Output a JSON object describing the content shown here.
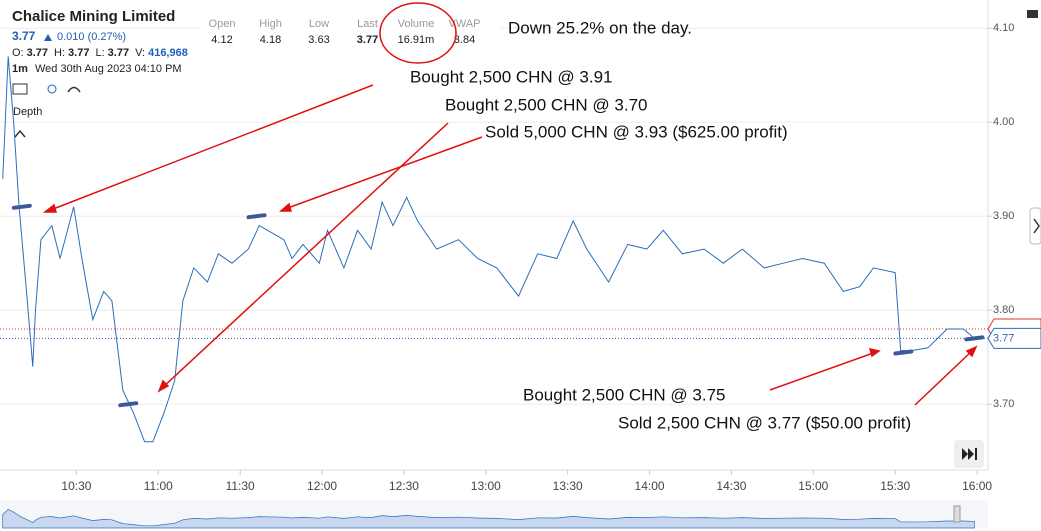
{
  "header": {
    "title": "Chalice Mining Limited",
    "price": "3.77",
    "change": "0.010 (0.27%)",
    "ohlc": [
      {
        "label": "O:",
        "value": "3.77"
      },
      {
        "label": "H:",
        "value": "3.77"
      },
      {
        "label": "L:",
        "value": "3.77"
      },
      {
        "label": "V:",
        "value": "416,968"
      }
    ],
    "interval": "1m",
    "datetime": "Wed 30th Aug 2023 04:10 PM",
    "depth": "Depth"
  },
  "stats": [
    {
      "label": "Open",
      "value": "4.12"
    },
    {
      "label": "High",
      "value": "4.18"
    },
    {
      "label": "Low",
      "value": "3.63"
    },
    {
      "label": "Last",
      "value": "3.77"
    },
    {
      "label": "Volume",
      "value": "16.91m"
    },
    {
      "label": "VWAP",
      "value": "3.84"
    }
  ],
  "chart_data": {
    "type": "line",
    "annotations": [
      "Down 25.2% on the day.",
      "Bought 2,500 CHN @ 3.91",
      "Bought 2,500 CHN @ 3.70",
      "Sold 5,000 CHN @ 3.93 ($625.00 profit)",
      "Bought 2,500 CHN @ 3.75",
      "Sold 2,500 CHN @ 3.77 ($50.00 profit)"
    ],
    "xlim": [
      602,
      964
    ],
    "ylim": [
      3.63,
      4.13
    ],
    "xticks": [
      {
        "value": 630,
        "label": "10:30"
      },
      {
        "value": 660,
        "label": "11:00"
      },
      {
        "value": 690,
        "label": "11:30"
      },
      {
        "value": 720,
        "label": "12:00"
      },
      {
        "value": 750,
        "label": "12:30"
      },
      {
        "value": 780,
        "label": "13:00"
      },
      {
        "value": 810,
        "label": "13:30"
      },
      {
        "value": 840,
        "label": "14:00"
      },
      {
        "value": 870,
        "label": "14:30"
      },
      {
        "value": 900,
        "label": "15:00"
      },
      {
        "value": 930,
        "label": "15:30"
      },
      {
        "value": 960,
        "label": "16:00"
      }
    ],
    "yticks": [
      {
        "value": 3.7,
        "label": "3.70"
      },
      {
        "value": 3.8,
        "label": "3.80"
      },
      {
        "value": 3.9,
        "label": "3.90"
      },
      {
        "value": 4.0,
        "label": "4.00"
      },
      {
        "value": 4.1,
        "label": "4.10"
      }
    ],
    "grid": true,
    "series": [
      {
        "color": "#2a6ebb",
        "x": [
          603,
          605,
          607,
          609,
          612,
          614,
          615,
          617,
          621,
          624,
          629,
          632,
          636,
          640,
          643,
          647,
          651,
          655,
          658,
          662,
          666,
          669,
          673,
          678,
          682,
          687,
          693,
          697,
          700,
          706,
          709,
          713,
          719,
          722,
          728,
          733,
          738,
          742,
          746,
          751,
          755,
          762,
          770,
          777,
          784,
          792,
          799,
          806,
          812,
          817,
          825,
          832,
          839,
          845,
          852,
          860,
          867,
          874,
          882,
          889,
          896,
          904,
          911,
          917,
          922,
          930,
          932,
          936,
          942,
          949,
          955,
          959
        ],
        "values": [
          3.94,
          4.07,
          4.0,
          3.91,
          3.81,
          3.74,
          3.8,
          3.875,
          3.89,
          3.855,
          3.91,
          3.855,
          3.79,
          3.82,
          3.81,
          3.715,
          3.69,
          3.66,
          3.66,
          3.69,
          3.725,
          3.81,
          3.845,
          3.83,
          3.86,
          3.85,
          3.865,
          3.89,
          3.885,
          3.875,
          3.855,
          3.87,
          3.85,
          3.885,
          3.845,
          3.885,
          3.865,
          3.915,
          3.89,
          3.92,
          3.895,
          3.865,
          3.875,
          3.855,
          3.845,
          3.815,
          3.86,
          3.855,
          3.895,
          3.865,
          3.83,
          3.87,
          3.865,
          3.885,
          3.86,
          3.865,
          3.85,
          3.865,
          3.845,
          3.85,
          3.855,
          3.85,
          3.82,
          3.825,
          3.845,
          3.84,
          3.757,
          3.757,
          3.76,
          3.78,
          3.78,
          3.77
        ]
      }
    ],
    "trades": {
      "color": "#3a5a9a",
      "x": [
        610,
        649,
        696,
        933,
        959
      ],
      "values": [
        3.91,
        3.7,
        3.9,
        3.755,
        3.77
      ]
    },
    "price_lines": [
      {
        "value": 3.78,
        "color": "#e03030"
      },
      {
        "value": 3.77,
        "label": "3.77",
        "color": "#2a6ebb"
      }
    ]
  }
}
